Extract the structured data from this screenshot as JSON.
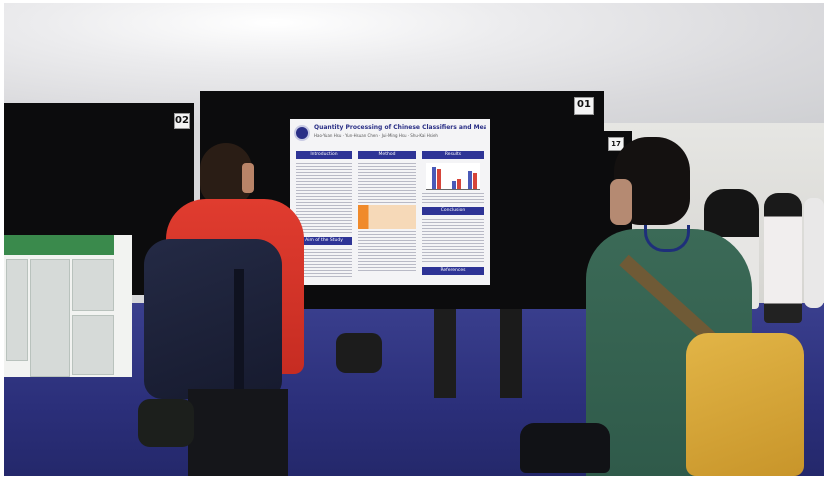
{
  "scene": {
    "description_hidden": "",
    "boards": [
      {
        "number": "02"
      },
      {
        "number": "01"
      },
      {
        "number": "17"
      }
    ],
    "poster": {
      "title": "Quantity Processing of Chinese Classifiers and Measure words",
      "authors": "Hao-Yuan Hsu · Yun-Hsuan Chen · Jui-Ming Hsu · Shu-Kai Hsieh",
      "sections": {
        "introduction": "Introduction",
        "method": "Method",
        "results": "Results",
        "aim": "Aim of the Study",
        "conclusion": "Conclusion",
        "references": "References"
      }
    },
    "colors": {
      "carpet": "#2b2f7a",
      "board": "#0c0c0d",
      "poster_accent": "#2e3496",
      "jacket": "#d6322a",
      "backpack": "#d9a83a"
    }
  }
}
